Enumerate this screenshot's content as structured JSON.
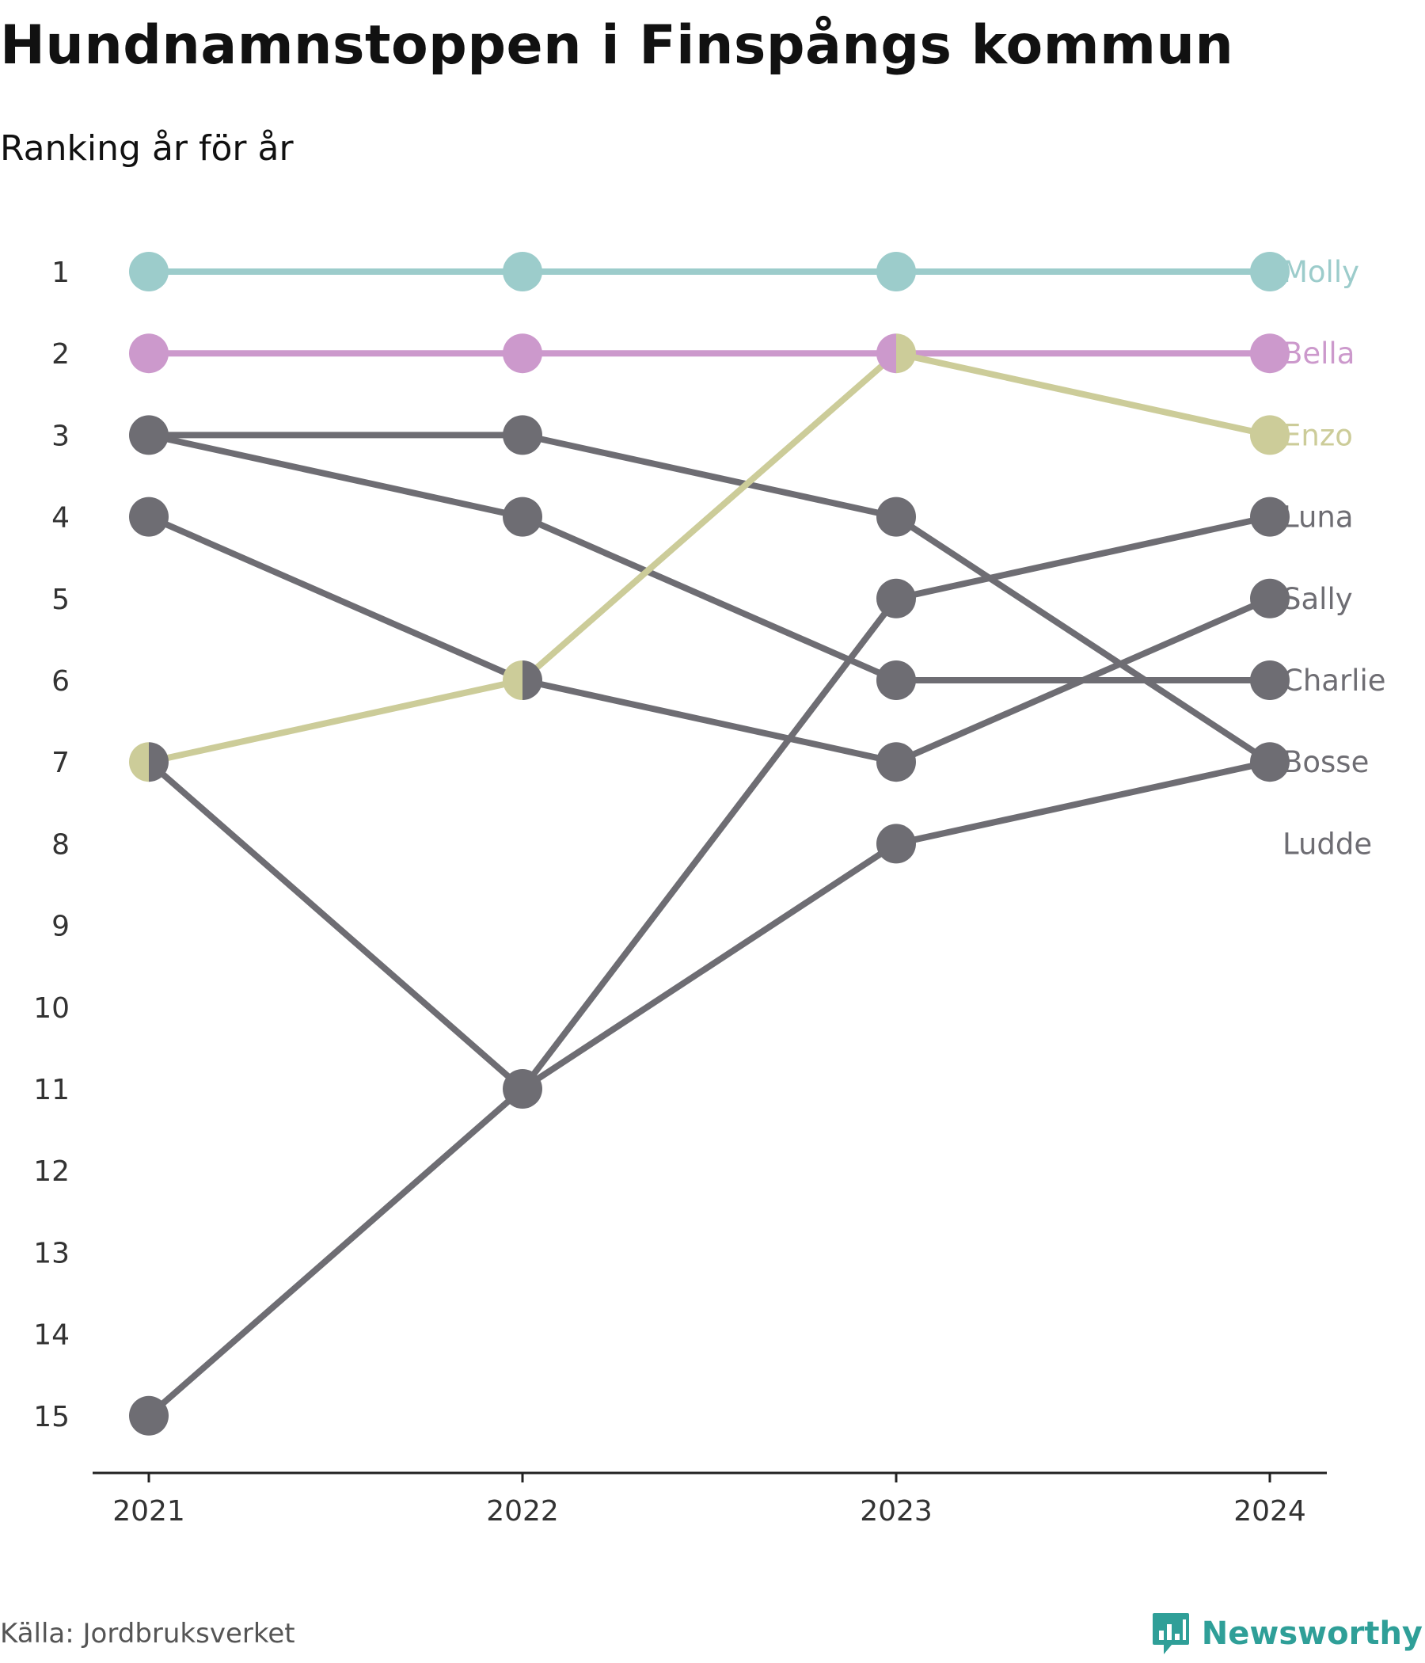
{
  "header": {
    "title": "Hundnamnstoppen i Finspångs kommun",
    "subtitle": "Ranking år för år"
  },
  "footer": {
    "source": "Källa: Jordbruksverket",
    "brand": "Newsworthy"
  },
  "colors": {
    "molly": "#9ccccb",
    "bella": "#cc99cc",
    "enzo": "#cccc99",
    "gray": "#6e6d73",
    "axis": "#222222",
    "tick_text": "#333333",
    "brand": "#2f9f98"
  },
  "chart_data": {
    "type": "line",
    "title": "Hundnamnstoppen i Finspångs kommun",
    "subtitle": "Ranking år för år",
    "x": [
      "2021",
      "2022",
      "2023",
      "2024"
    ],
    "y_ticks": [
      1,
      2,
      3,
      4,
      5,
      6,
      7,
      8,
      9,
      10,
      11,
      12,
      13,
      14,
      15
    ],
    "y_range": [
      1,
      15
    ],
    "y_reversed": true,
    "grid": false,
    "legend": "direct labels at right end of lines",
    "series": [
      {
        "name": "Molly",
        "values": [
          1,
          1,
          1,
          1
        ],
        "color": "#9ccccb"
      },
      {
        "name": "Bella",
        "values": [
          2,
          2,
          2,
          2
        ],
        "color": "#cc99cc"
      },
      {
        "name": "Enzo",
        "values": [
          7,
          6,
          2,
          3
        ],
        "color": "#cccc99"
      },
      {
        "name": "Luna",
        "values": [
          15,
          11,
          5,
          4
        ],
        "color": "#6e6d73"
      },
      {
        "name": "Sally",
        "values": [
          4,
          6,
          7,
          5
        ],
        "color": "#6e6d73"
      },
      {
        "name": "Charlie",
        "values": [
          3,
          4,
          6,
          6
        ],
        "color": "#6e6d73"
      },
      {
        "name": "Bosse",
        "values": [
          3,
          3,
          4,
          7
        ],
        "color": "#6e6d73"
      },
      {
        "name": "Ludde",
        "values": [
          7,
          11,
          8,
          7
        ],
        "color": "#6e6d73"
      }
    ],
    "label_ranks": {
      "Molly": 1,
      "Bella": 2,
      "Enzo": 3,
      "Luna": 4,
      "Sally": 5,
      "Charlie": 6,
      "Bosse": 7,
      "Ludde": 8
    }
  }
}
